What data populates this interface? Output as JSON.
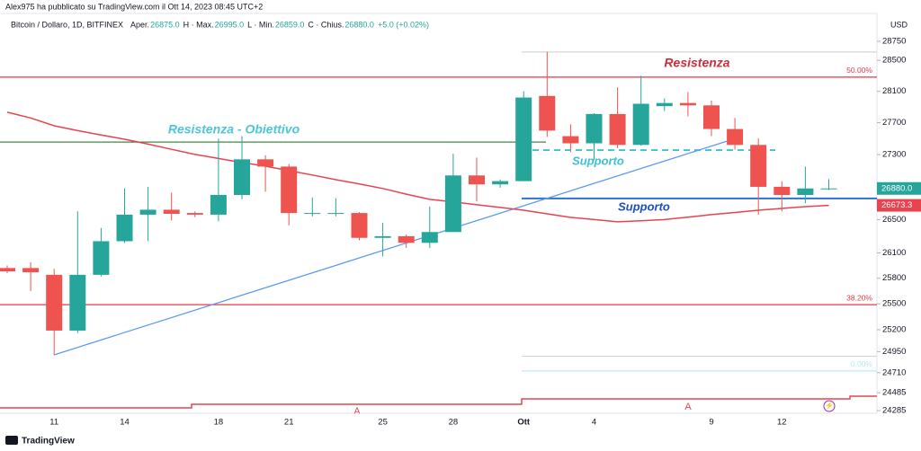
{
  "page": {
    "publisher": "Alex975 ha pubblicato su TradingView.com il Ott 14, 2023 08:45 UTC+2",
    "brand": "TradingView"
  },
  "chart_data": {
    "type": "candlestick",
    "legend": {
      "symbol": "Bitcoin / Dollaro, 1D, BITFINEX",
      "items": [
        {
          "key": "Aper.",
          "value": "26875.0"
        },
        {
          "key": "H · Max.",
          "value": "26995.0"
        },
        {
          "key": "L · Min.",
          "value": "26859.0"
        },
        {
          "key": "C · Chius.",
          "value": "26880.0"
        }
      ],
      "change": "+5.0 (+0.02%)"
    },
    "currency": "USD",
    "log_scale": true,
    "ylim": [
      24256,
      29117
    ],
    "yticks": [
      28750,
      28500,
      28100,
      27700,
      27300,
      26500,
      26100,
      25800,
      25500,
      25200,
      24950,
      24710,
      24485,
      24285
    ],
    "up_color": "#26a69a",
    "down_color": "#ef5350",
    "categories": [
      null,
      null,
      "11",
      null,
      null,
      "14",
      null,
      null,
      null,
      "18",
      null,
      null,
      "21",
      null,
      null,
      null,
      "25",
      null,
      null,
      "28",
      null,
      null,
      "Ott",
      null,
      null,
      "4",
      null,
      null,
      null,
      null,
      "9",
      null,
      null,
      "12",
      null,
      null
    ],
    "candles": [
      {
        "o": 25920,
        "h": 25950,
        "l": 25860,
        "c": 25880
      },
      {
        "o": 25920,
        "h": 25990,
        "l": 25650,
        "c": 25870
      },
      {
        "o": 25840,
        "h": 25910,
        "l": 24910,
        "c": 25190
      },
      {
        "o": 25190,
        "h": 26600,
        "l": 25160,
        "c": 25840
      },
      {
        "o": 25840,
        "h": 26400,
        "l": 25820,
        "c": 26240
      },
      {
        "o": 26240,
        "h": 26880,
        "l": 26220,
        "c": 26560
      },
      {
        "o": 26560,
        "h": 26900,
        "l": 26240,
        "c": 26620
      },
      {
        "o": 26620,
        "h": 26830,
        "l": 26490,
        "c": 26570
      },
      {
        "o": 26580,
        "h": 26600,
        "l": 26530,
        "c": 26560
      },
      {
        "o": 26560,
        "h": 27500,
        "l": 26480,
        "c": 26800
      },
      {
        "o": 26800,
        "h": 27530,
        "l": 26750,
        "c": 27240
      },
      {
        "o": 27240,
        "h": 27290,
        "l": 26840,
        "c": 27150
      },
      {
        "o": 27150,
        "h": 27180,
        "l": 26430,
        "c": 26580
      },
      {
        "o": 26570,
        "h": 26770,
        "l": 26540,
        "c": 26580
      },
      {
        "o": 26570,
        "h": 26760,
        "l": 26540,
        "c": 26580
      },
      {
        "o": 26580,
        "h": 26590,
        "l": 26250,
        "c": 26280
      },
      {
        "o": 26280,
        "h": 26460,
        "l": 26060,
        "c": 26300
      },
      {
        "o": 26300,
        "h": 26320,
        "l": 26160,
        "c": 26220
      },
      {
        "o": 26220,
        "h": 26660,
        "l": 26160,
        "c": 26350
      },
      {
        "o": 26350,
        "h": 27310,
        "l": 26350,
        "c": 27040
      },
      {
        "o": 27040,
        "h": 27260,
        "l": 26720,
        "c": 26930
      },
      {
        "o": 26930,
        "h": 26990,
        "l": 26890,
        "c": 26970
      },
      {
        "o": 26970,
        "h": 28100,
        "l": 26970,
        "c": 28020
      },
      {
        "o": 28040,
        "h": 28610,
        "l": 27520,
        "c": 27600
      },
      {
        "o": 27530,
        "h": 27680,
        "l": 27330,
        "c": 27440
      },
      {
        "o": 27440,
        "h": 27820,
        "l": 27230,
        "c": 27810
      },
      {
        "o": 27810,
        "h": 28150,
        "l": 27380,
        "c": 27420
      },
      {
        "o": 27420,
        "h": 28300,
        "l": 27410,
        "c": 27940
      },
      {
        "o": 27910,
        "h": 28010,
        "l": 27850,
        "c": 27950
      },
      {
        "o": 27950,
        "h": 28090,
        "l": 27780,
        "c": 27920
      },
      {
        "o": 27920,
        "h": 27980,
        "l": 27530,
        "c": 27620
      },
      {
        "o": 27620,
        "h": 27760,
        "l": 27360,
        "c": 27420
      },
      {
        "o": 27420,
        "h": 27500,
        "l": 26560,
        "c": 26900
      },
      {
        "o": 26900,
        "h": 26970,
        "l": 26600,
        "c": 26800
      },
      {
        "o": 26800,
        "h": 27150,
        "l": 26700,
        "c": 26880
      },
      {
        "o": 26875,
        "h": 26995,
        "l": 26859,
        "c": 26880
      }
    ],
    "moving_average": {
      "color": "#e8434f",
      "values": [
        27833,
        27760,
        27661,
        27600,
        27545,
        27491,
        27430,
        27365,
        27301,
        27250,
        27200,
        27154,
        27100,
        27045,
        26988,
        26935,
        26880,
        26810,
        26746,
        26714,
        26681,
        26648,
        26614,
        26570,
        26527,
        26500,
        26473,
        26485,
        26500,
        26530,
        26560,
        26587,
        26614,
        26636,
        26657,
        26673.3
      ]
    },
    "trendline": {
      "color": "#5b9cf6",
      "from": 24912,
      "to": 27491
    },
    "levels": [
      {
        "value": 28282,
        "color": "#e53945",
        "label": "50.00%"
      },
      {
        "value": 25490,
        "color": "#e53945",
        "label": "38.20%"
      },
      {
        "value": 24729,
        "color": "#b5e8f2",
        "label": "0.00%"
      },
      {
        "value": 27456,
        "color": "#3d8b40"
      },
      {
        "value": 27355,
        "color": "#3ec1d3"
      },
      {
        "value": 26757,
        "color": "#2f6fd6"
      },
      {
        "value": 28609,
        "color": "#d5d5d5"
      },
      {
        "value": 24896,
        "color": "#d5d5d5"
      }
    ],
    "annotations": [
      {
        "text": "Resistenza - Obiettivo",
        "color": "#4cc6d8"
      },
      {
        "text": "Supporto",
        "color": "#3ec1d3"
      },
      {
        "text": "Supporto",
        "color": "#1f4fbf"
      },
      {
        "text": "Resistenza",
        "color": "#cf2e3c"
      }
    ],
    "price_labels": [
      {
        "value": 26880,
        "label": "26880.0",
        "color": "#26a69a"
      },
      {
        "value": 26673.3,
        "label": "26673.3",
        "color": "#e8434f"
      }
    ]
  }
}
